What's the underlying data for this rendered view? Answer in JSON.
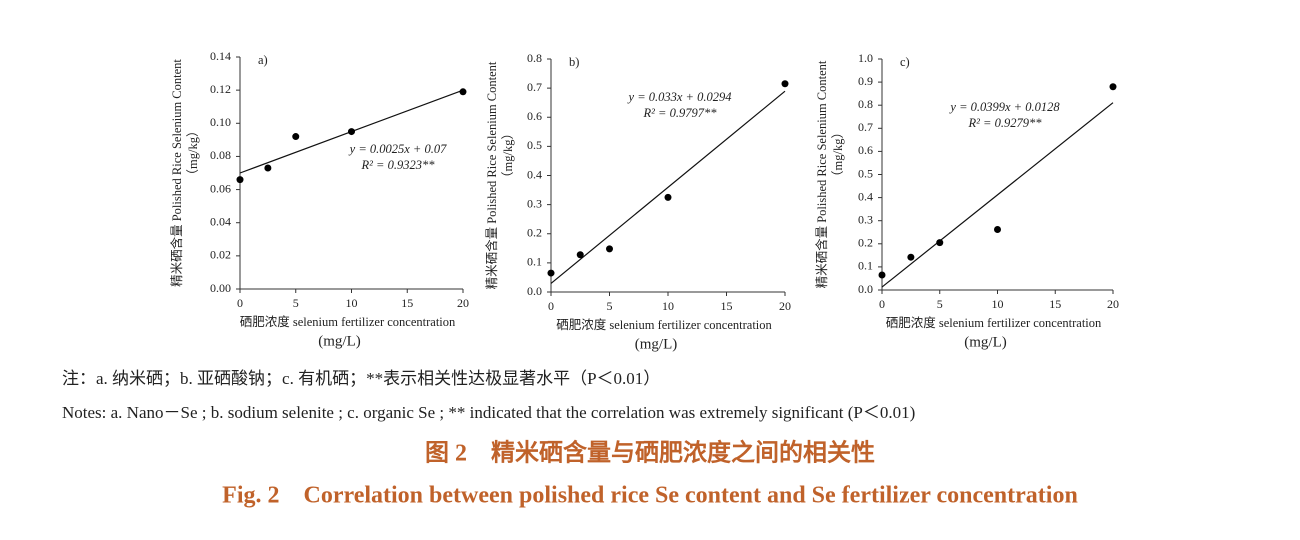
{
  "chart_data": [
    {
      "type": "scatter",
      "panel": "a)",
      "ylabel": [
        "精米硒含量 Polished Rice Selenium Content",
        "（mg/kg）"
      ],
      "xlabel": [
        "硒肥浓度 selenium fertilizer concentration",
        "(mg/L)"
      ],
      "x": [
        0,
        2.5,
        5,
        10,
        20
      ],
      "values": [
        0.066,
        0.073,
        0.092,
        0.095,
        0.119
      ],
      "color": "#000000",
      "trendline": {
        "x": [
          0,
          20
        ],
        "y": [
          0.07,
          0.12
        ]
      },
      "annotations": [
        "y = 0.0025x + 0.07",
        "R² = 0.9323**"
      ],
      "xlim": [
        0,
        20
      ],
      "xticks": [
        0,
        5,
        10,
        15,
        20
      ],
      "ylim": [
        0,
        0.14
      ],
      "yticks": [
        {
          "value": 0,
          "label": "0.00"
        },
        0.02,
        0.04,
        0.06,
        0.08,
        {
          "value": 0.1,
          "label": "0.10"
        },
        0.12,
        0.14
      ]
    },
    {
      "type": "scatter",
      "panel": "b)",
      "ylabel": [
        "精米硒含量 Polished Rice Selenium Content",
        "（mg/kg）"
      ],
      "xlabel": [
        "硒肥浓度 selenium fertilizer concentration",
        "(mg/L)"
      ],
      "x": [
        0,
        2.5,
        5,
        10,
        20
      ],
      "values": [
        0.065,
        0.128,
        0.148,
        0.325,
        0.715
      ],
      "color": "#000000",
      "trendline": {
        "x": [
          0,
          20
        ],
        "y": [
          0.0294,
          0.6894
        ]
      },
      "annotations": [
        "y = 0.033x + 0.0294",
        "R² = 0.9797**"
      ],
      "xlim": [
        0,
        20
      ],
      "xticks": [
        0,
        5,
        10,
        15,
        20
      ],
      "ylim": [
        0,
        0.8
      ],
      "yticks": [
        {
          "value": 0,
          "label": "0.0"
        },
        0.1,
        0.2,
        0.3,
        0.4,
        0.5,
        0.6,
        0.7,
        0.8
      ]
    },
    {
      "type": "scatter",
      "panel": "c)",
      "ylabel": [
        "精米硒含量 Polished Rice Selenium Content",
        "（mg/kg）"
      ],
      "xlabel": [
        "硒肥浓度 selenium fertilizer concentration",
        "(mg/L)"
      ],
      "x": [
        0,
        2.5,
        5,
        10,
        20
      ],
      "values": [
        0.065,
        0.142,
        0.205,
        0.262,
        0.88
      ],
      "color": "#000000",
      "trendline": {
        "x": [
          0,
          20
        ],
        "y": [
          0.0128,
          0.8108
        ]
      },
      "annotations": [
        "y = 0.0399x + 0.0128",
        "R² = 0.9279**"
      ],
      "xlim": [
        0,
        20
      ],
      "xticks": [
        0,
        5,
        10,
        15,
        20
      ],
      "ylim": [
        0,
        1
      ],
      "yticks": [
        {
          "value": 0,
          "label": "0.0"
        },
        0.1,
        0.2,
        0.3,
        0.4,
        0.5,
        0.6,
        0.7,
        0.8,
        0.9,
        {
          "value": 1,
          "label": "1.0"
        }
      ]
    }
  ],
  "notes": [
    "注：a. 纳米硒；b. 亚硒酸钠；c. 有机硒；**表示相关性达极显著水平（P＜0.01）",
    "Notes: a. Nano－Se ; b. sodium selenite ; c. organic Se ; ** indicated that the correlation was extremely significant (P＜0.01)"
  ],
  "caption": [
    "图 2　精米硒含量与硒肥浓度之间的相关性",
    "Fig. 2　Correlation between polished rice Se content and Se fertilizer concentration"
  ]
}
